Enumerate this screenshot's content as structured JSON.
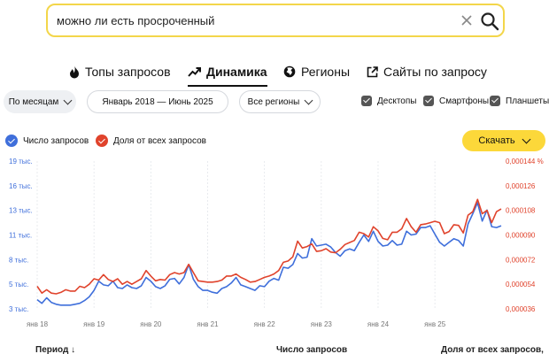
{
  "search": {
    "query": "можно ли есть просроченный"
  },
  "tabs": [
    {
      "label": "Топы запросов",
      "icon": "fire-icon",
      "active": false
    },
    {
      "label": "Динамика",
      "icon": "trend-icon",
      "active": true
    },
    {
      "label": "Регионы",
      "icon": "globe-icon",
      "active": false
    },
    {
      "label": "Сайты по запросу",
      "icon": "external-link-icon",
      "active": false
    }
  ],
  "filters": {
    "period": "По месяцам",
    "range": "Январь 2018 — Июнь 2025",
    "region": "Все регионы",
    "devices": [
      "Десктопы",
      "Смартфоны",
      "Планшеты"
    ]
  },
  "legend": {
    "count": "Число запросов",
    "share": "Доля от всех запросов",
    "count_color": "#3f6fdb",
    "share_color": "#e0432c"
  },
  "download_label": "Скачать",
  "chart_data": {
    "type": "line",
    "x_ticks": [
      "янв 18",
      "янв 19",
      "янв 20",
      "янв 21",
      "янв 22",
      "янв 23",
      "янв 24",
      "янв 25"
    ],
    "y_left_ticks": [
      "19 тыс.",
      "16 тыс.",
      "13 тыс.",
      "11 тыс.",
      "8 тыс.",
      "5 тыс.",
      "3 тыс."
    ],
    "y_right_ticks": [
      "0,000144 %",
      "0,000126",
      "0,000108",
      "0,000090",
      "0,000072",
      "0,000054",
      "0,000036"
    ],
    "y_left_range": [
      3000,
      19000
    ],
    "y_right_range": [
      3.6e-05,
      0.000144
    ],
    "series": [
      {
        "name": "Число запросов",
        "values": [
          4000,
          3600,
          4200,
          3700,
          3500,
          3400,
          3400,
          3400,
          3500,
          3600,
          3900,
          4300,
          5000,
          6000,
          5600,
          5500,
          6000,
          5300,
          5200,
          5600,
          5300,
          5200,
          5500,
          6400,
          6000,
          5400,
          5200,
          5500,
          6200,
          6300,
          5700,
          6400,
          7800,
          6200,
          5400,
          5000,
          5000,
          4800,
          4700,
          5200,
          5400,
          5800,
          6400,
          5600,
          5400,
          5200,
          5000,
          5500,
          5400,
          6000,
          6300,
          6100,
          7500,
          7400,
          7800,
          9000,
          8500,
          8600,
          10600,
          9800,
          9900,
          10000,
          9700,
          9100,
          8700,
          9300,
          9500,
          9300,
          10200,
          11000,
          10300,
          11400,
          10300,
          9800,
          9900,
          10400,
          9900,
          10000,
          11400,
          11000,
          11100,
          11800,
          11800,
          12000,
          11100,
          10200,
          9800,
          10200,
          10600,
          10400,
          9800,
          12200,
          13300,
          14500,
          12500,
          13700,
          11900,
          11800,
          12000
        ],
        "color": "#3f6fdb"
      },
      {
        "name": "Доля от всех запросов",
        "values": [
          5.25e-05,
          4.75e-05,
          5e-05,
          4.75e-05,
          4.7e-05,
          4.8e-05,
          5e-05,
          4.9e-05,
          4.9e-05,
          5.25e-05,
          5.15e-05,
          5.4e-05,
          5.8e-05,
          5.7e-05,
          6.1e-05,
          5.75e-05,
          5.6e-05,
          5.8e-05,
          5.4e-05,
          5.6e-05,
          5.4e-05,
          5.6e-05,
          5.8e-05,
          6.4e-05,
          6e-05,
          5.65e-05,
          5.75e-05,
          5.7e-05,
          6.1e-05,
          6.25e-05,
          6.15e-05,
          6.25e-05,
          6.85e-05,
          6.25e-05,
          5.65e-05,
          5.6e-05,
          5.55e-05,
          5.55e-05,
          5.6e-05,
          5.7e-05,
          6e-05,
          6e-05,
          6.15e-05,
          5.9e-05,
          5.75e-05,
          5.55e-05,
          5.6e-05,
          5.75e-05,
          5.9e-05,
          6e-05,
          6.15e-05,
          6.4e-05,
          7e-05,
          7.1e-05,
          7.4e-05,
          8.55e-05,
          8.05e-05,
          8.15e-05,
          8.35e-05,
          7.8e-05,
          7.85e-05,
          8e-05,
          7.75e-05,
          7.7e-05,
          7.95e-05,
          8.3e-05,
          8.45e-05,
          8.6e-05,
          9.2e-05,
          9.1e-05,
          8.85e-05,
          9.6e-05,
          9.3e-05,
          8.75e-05,
          8.65e-05,
          9.2e-05,
          9.2e-05,
          9.45e-05,
          0.000102,
          9.6e-05,
          9.2e-05,
          9.75e-05,
          9.8e-05,
          9.9e-05,
          0.0001,
          9.9e-05,
          9.1e-05,
          9.25e-05,
          9.75e-05,
          9.7e-05,
          9.15e-05,
          0.0001045,
          0.000107,
          0.000116,
          0.0001055,
          0.000108,
          9.9e-05,
          0.000107,
          0.000109
        ],
        "color": "#e0432c"
      }
    ]
  },
  "bottom": {
    "period": "Период ↓",
    "count": "Число запросов",
    "share": "Доля от всех запросов, %"
  }
}
